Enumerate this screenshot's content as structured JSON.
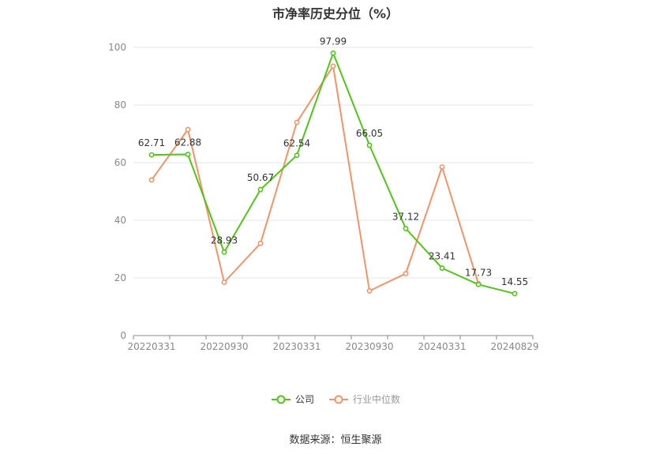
{
  "source": "数据来源：恒生聚源",
  "chart_data": {
    "type": "line",
    "title": "市净率历史分位（%）",
    "xlabel": "",
    "ylabel": "",
    "ylim": [
      0,
      100
    ],
    "yticks": [
      0,
      20,
      40,
      60,
      80,
      100
    ],
    "x": [
      "20220331",
      "20220630",
      "20220930",
      "20221230",
      "20230331",
      "20230630",
      "20230930",
      "20231229",
      "20240331",
      "20240630",
      "20240829"
    ],
    "x_tick_labels": [
      "20220331",
      "20220930",
      "20230331",
      "20230930",
      "20240331",
      "20240829"
    ],
    "grid": true,
    "legend_position": "bottom",
    "series": [
      {
        "name": "公司",
        "color": "#52c41a",
        "values": [
          62.71,
          62.88,
          28.93,
          50.67,
          62.54,
          97.99,
          66.05,
          37.12,
          23.41,
          17.73,
          14.55
        ],
        "labels": [
          "62.71",
          "62.88",
          "28.93",
          "50.67",
          "62.54",
          "97.99",
          "66.05",
          "37.12",
          "23.41",
          "17.73",
          "14.55"
        ]
      },
      {
        "name": "行业中位数",
        "color": "#f0956a",
        "values": [
          54,
          71.5,
          18.5,
          32,
          74,
          93.5,
          15.5,
          21.5,
          58.5,
          18,
          null
        ]
      }
    ]
  }
}
